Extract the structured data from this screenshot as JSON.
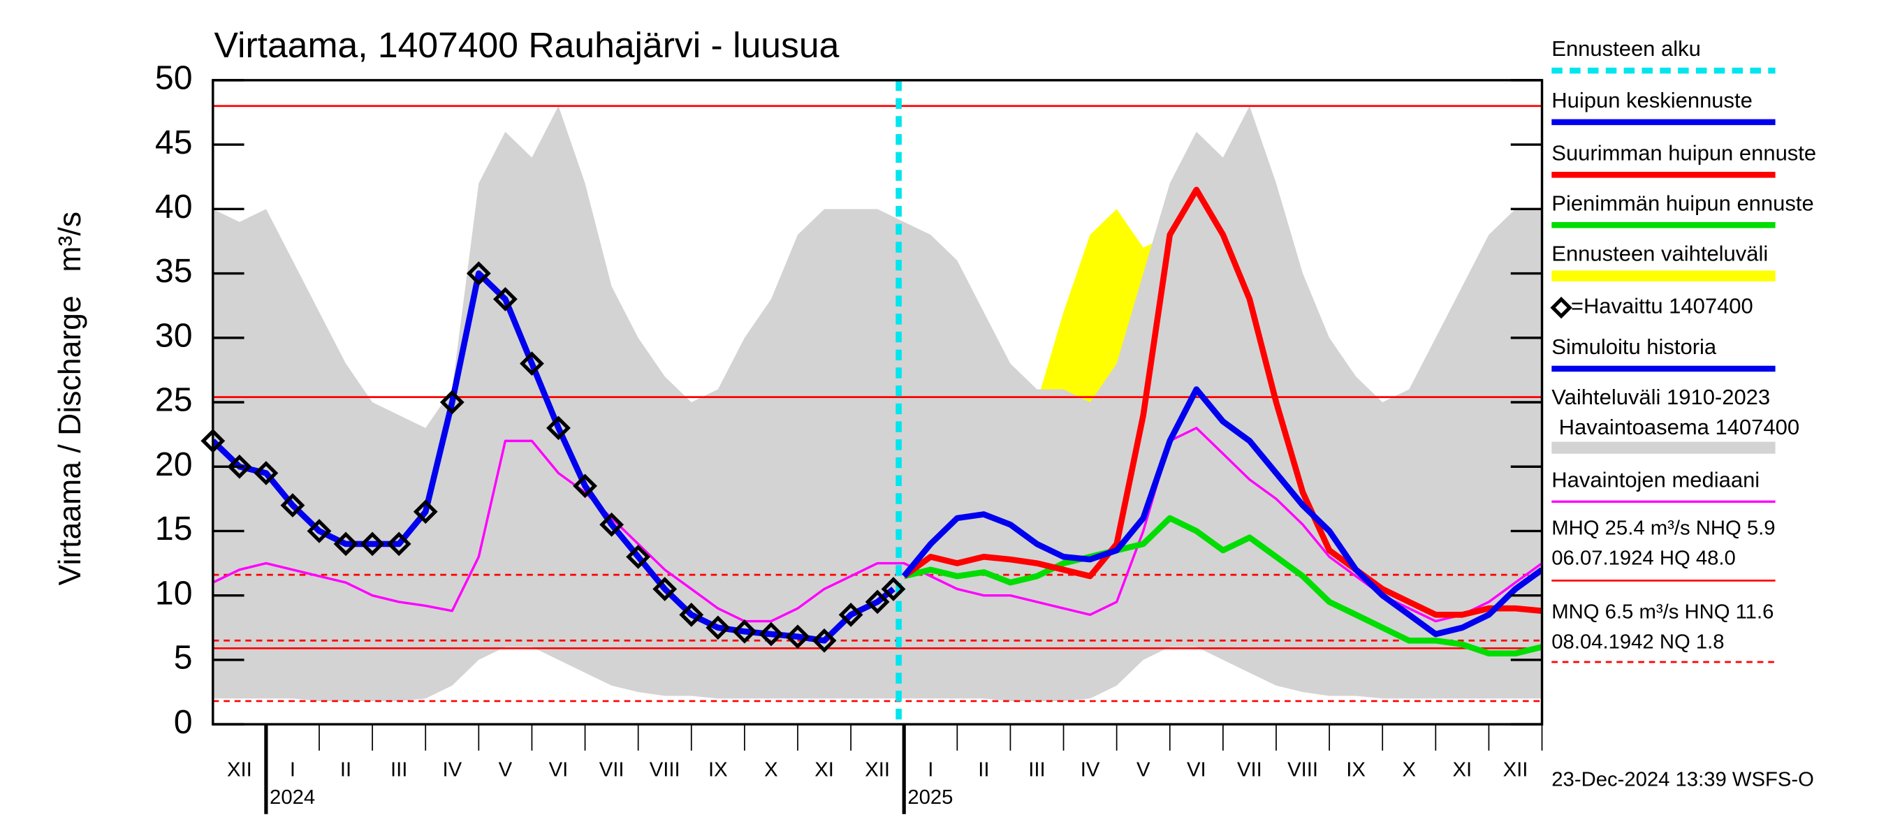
{
  "chart_data": {
    "type": "line",
    "title": "Virtaama, 1407400 Rauhajärvi - luusua",
    "y_label": "Virtaama / Discharge",
    "y_unit": "m³/s",
    "xlim": [
      0,
      25
    ],
    "ylim": [
      0,
      50
    ],
    "yticks": [
      0,
      5,
      10,
      15,
      20,
      25,
      30,
      35,
      40,
      45,
      50
    ],
    "months": [
      "XII",
      "I",
      "II",
      "III",
      "IV",
      "V",
      "VI",
      "VII",
      "VIII",
      "IX",
      "X",
      "XI",
      "XII",
      "I",
      "II",
      "III",
      "IV",
      "V",
      "VI",
      "VII",
      "VIII",
      "IX",
      "X",
      "XI",
      "XII"
    ],
    "xticks": [
      {
        "value": 1,
        "label": "2024"
      },
      {
        "value": 13,
        "label": "2025"
      }
    ],
    "forecast_start": {
      "name": "Ennusteen alku",
      "x": 12.9,
      "color": "#00e5ee"
    },
    "series": [
      {
        "name": "Huipun keskiennuste",
        "kind": "line",
        "color": "#0000ee",
        "x": [
          13,
          13.5,
          14,
          14.5,
          15,
          15.5,
          16,
          16.5,
          17,
          17.5,
          18,
          18.5,
          19,
          19.5,
          20,
          20.5,
          21,
          21.5,
          22,
          22.5,
          23,
          23.5,
          24,
          24.5,
          25
        ],
        "values": [
          11.5,
          14,
          16,
          16.3,
          15.5,
          14,
          13,
          12.8,
          13.5,
          16,
          22,
          26,
          23.5,
          22,
          19.5,
          17,
          15,
          12,
          10,
          8.5,
          7,
          7.5,
          8.5,
          10.5,
          12
        ]
      },
      {
        "name": "Suurimman huipun ennuste",
        "kind": "line",
        "color": "#ff0000",
        "x": [
          13,
          13.5,
          14,
          14.5,
          15,
          15.5,
          16,
          16.5,
          17,
          17.5,
          18,
          18.5,
          19,
          19.5,
          20,
          20.5,
          21,
          21.5,
          22,
          22.5,
          23,
          23.5,
          24,
          24.5,
          25
        ],
        "values": [
          11.5,
          13,
          12.5,
          13,
          12.8,
          12.5,
          12,
          11.5,
          14,
          24,
          38,
          41.5,
          38,
          33,
          25,
          18,
          13.5,
          12,
          10.5,
          9.5,
          8.5,
          8.5,
          9,
          9,
          8.8
        ]
      },
      {
        "name": "Pienimmän huipun ennuste",
        "kind": "line",
        "color": "#00dd00",
        "x": [
          13,
          13.5,
          14,
          14.5,
          15,
          15.5,
          16,
          16.5,
          17,
          17.5,
          18,
          18.5,
          19,
          19.5,
          20,
          20.5,
          21,
          21.5,
          22,
          22.5,
          23,
          23.5,
          24,
          24.5,
          25
        ],
        "values": [
          11.5,
          12,
          11.5,
          11.8,
          11,
          11.5,
          12.5,
          13,
          13.5,
          14,
          16,
          15,
          13.5,
          14.5,
          13,
          11.5,
          9.5,
          8.5,
          7.5,
          6.5,
          6.5,
          6.2,
          5.5,
          5.5,
          6
        ]
      },
      {
        "name": "Ennusteen vaihteluväli",
        "kind": "band",
        "color": "#ffff00",
        "x": [
          13,
          13.5,
          14,
          14.5,
          15,
          15.5,
          16,
          16.5,
          17,
          17.5,
          18,
          18.5,
          19,
          19.5,
          20,
          20.5,
          21,
          21.5,
          22,
          22.5,
          23,
          23.5,
          24,
          24.5,
          25
        ],
        "upper": [
          11.5,
          13,
          15,
          18,
          20,
          25,
          32,
          38,
          40,
          37,
          38,
          40,
          36,
          33,
          29,
          26,
          23,
          17,
          14,
          13,
          12,
          13,
          20,
          30,
          40
        ],
        "lower": [
          11,
          10,
          9,
          8.5,
          8,
          7,
          7.5,
          8,
          8.5,
          9,
          10,
          10,
          9,
          8.5,
          7.5,
          6.5,
          5,
          4.5,
          4,
          3.8,
          3.5,
          3.5,
          3.5,
          3.5,
          3.5
        ]
      },
      {
        "name": "=Havaittu 1407400",
        "kind": "points",
        "color": "#000000",
        "x": [
          0,
          0.5,
          1,
          1.5,
          2,
          2.5,
          3,
          3.5,
          4,
          4.5,
          5,
          5.5,
          6,
          6.5,
          7,
          7.5,
          8,
          8.5,
          9,
          9.5,
          10,
          10.5,
          11,
          11.5,
          12,
          12.5,
          12.8
        ],
        "values": [
          22,
          20,
          19.5,
          17,
          15,
          14,
          14,
          14,
          16.5,
          25,
          35,
          33,
          28,
          23,
          18.5,
          15.5,
          13,
          10.5,
          8.5,
          7.5,
          7.2,
          7,
          6.8,
          6.5,
          8.5,
          9.5,
          10.5
        ]
      },
      {
        "name": "Simuloitu historia",
        "kind": "line",
        "color": "#0000ee",
        "x": [
          0,
          0.5,
          1,
          1.5,
          2,
          2.5,
          3,
          3.5,
          4,
          4.5,
          5,
          5.5,
          6,
          6.5,
          7,
          7.5,
          8,
          8.5,
          9,
          9.5,
          10,
          10.5,
          11,
          11.5,
          12,
          12.5,
          12.8
        ],
        "values": [
          22,
          20,
          19.5,
          17,
          15,
          14,
          14,
          14,
          16.5,
          25,
          35,
          33,
          28,
          23,
          18.5,
          15.5,
          13,
          10.5,
          8.5,
          7.5,
          7.2,
          7,
          6.8,
          6.5,
          8.5,
          9.5,
          10.5
        ]
      },
      {
        "name": [
          "Vaihteluväli 1910-2023",
          "Havaintoasema 1407400"
        ],
        "kind": "band",
        "color": "#d3d3d3",
        "x": [
          0,
          0.5,
          1,
          1.5,
          2,
          2.5,
          3,
          3.5,
          4,
          4.5,
          5,
          5.5,
          6,
          6.5,
          7,
          7.5,
          8,
          8.5,
          9,
          9.5,
          10,
          10.5,
          11,
          11.5,
          12,
          12.5,
          13,
          13.5,
          14,
          14.5,
          15,
          15.5,
          16,
          16.5,
          17,
          17.5,
          18,
          18.5,
          19,
          19.5,
          20,
          20.5,
          21,
          21.5,
          22,
          22.5,
          23,
          23.5,
          24,
          24.5,
          25
        ],
        "upper": [
          40,
          39,
          40,
          36,
          32,
          28,
          25,
          24,
          23,
          26,
          42,
          46,
          44,
          48,
          42,
          34,
          30,
          27,
          25,
          26,
          30,
          33,
          38,
          40,
          40,
          40,
          39,
          38,
          36,
          32,
          28,
          26,
          26,
          25,
          28,
          35,
          42,
          46,
          44,
          48,
          42,
          35,
          30,
          27,
          25,
          26,
          30,
          34,
          38,
          40,
          40
        ],
        "lower": [
          2,
          2,
          2,
          2,
          1.8,
          1.8,
          1.8,
          1.8,
          2,
          3,
          5,
          6,
          6,
          5,
          4,
          3,
          2.5,
          2.2,
          2.2,
          2,
          2,
          2,
          2,
          2,
          2,
          2,
          2,
          2,
          2,
          2,
          1.8,
          1.8,
          1.8,
          2,
          3,
          5,
          6,
          6,
          5,
          4,
          3,
          2.5,
          2.2,
          2.2,
          2,
          2,
          2,
          2,
          2,
          2,
          2
        ]
      },
      {
        "name": "Havaintojen mediaani",
        "kind": "line",
        "color": "#ff00ff",
        "x": [
          0,
          0.5,
          1,
          1.5,
          2,
          2.5,
          3,
          3.5,
          4,
          4.5,
          5,
          5.5,
          6,
          6.5,
          7,
          7.5,
          8,
          8.5,
          9,
          9.5,
          10,
          10.5,
          11,
          11.5,
          12,
          12.5,
          13,
          13.5,
          14,
          14.5,
          15,
          15.5,
          16,
          16.5,
          17,
          17.5,
          18,
          18.5,
          19,
          19.5,
          20,
          20.5,
          21,
          21.5,
          22,
          22.5,
          23,
          23.5,
          24,
          24.5,
          25
        ],
        "values": [
          11,
          12,
          12.5,
          12,
          11.5,
          11,
          10,
          9.5,
          9.2,
          8.8,
          13,
          22,
          22,
          19.5,
          18,
          16,
          14,
          12,
          10.5,
          9,
          8,
          8,
          9,
          10.5,
          11.5,
          12.5,
          12.5,
          11.5,
          10.5,
          10,
          10,
          9.5,
          9,
          8.5,
          9.5,
          15,
          22,
          23,
          21,
          19,
          17.5,
          15.5,
          13,
          11.5,
          10,
          9,
          8,
          8.5,
          9.5,
          11,
          12.5
        ]
      }
    ],
    "hlines": [
      {
        "value": 48.0,
        "dashed": false,
        "color": "#ff0000"
      },
      {
        "value": 25.4,
        "dashed": false,
        "color": "#ff0000"
      },
      {
        "value": 5.9,
        "dashed": false,
        "color": "#ff0000"
      },
      {
        "value": 11.6,
        "dashed": true,
        "color": "#ff0000"
      },
      {
        "value": 6.5,
        "dashed": true,
        "color": "#ff0000"
      },
      {
        "value": 1.8,
        "dashed": true,
        "color": "#ff0000"
      }
    ],
    "stats": [
      "MHQ 25.4 m³/s NHQ  5.9",
      "06.07.1924 HQ 48.0",
      "MNQ  6.5 m³/s HNQ 11.6",
      "08.04.1942 NQ  1.8"
    ],
    "footer": "23-Dec-2024 13:39 WSFS-O"
  }
}
